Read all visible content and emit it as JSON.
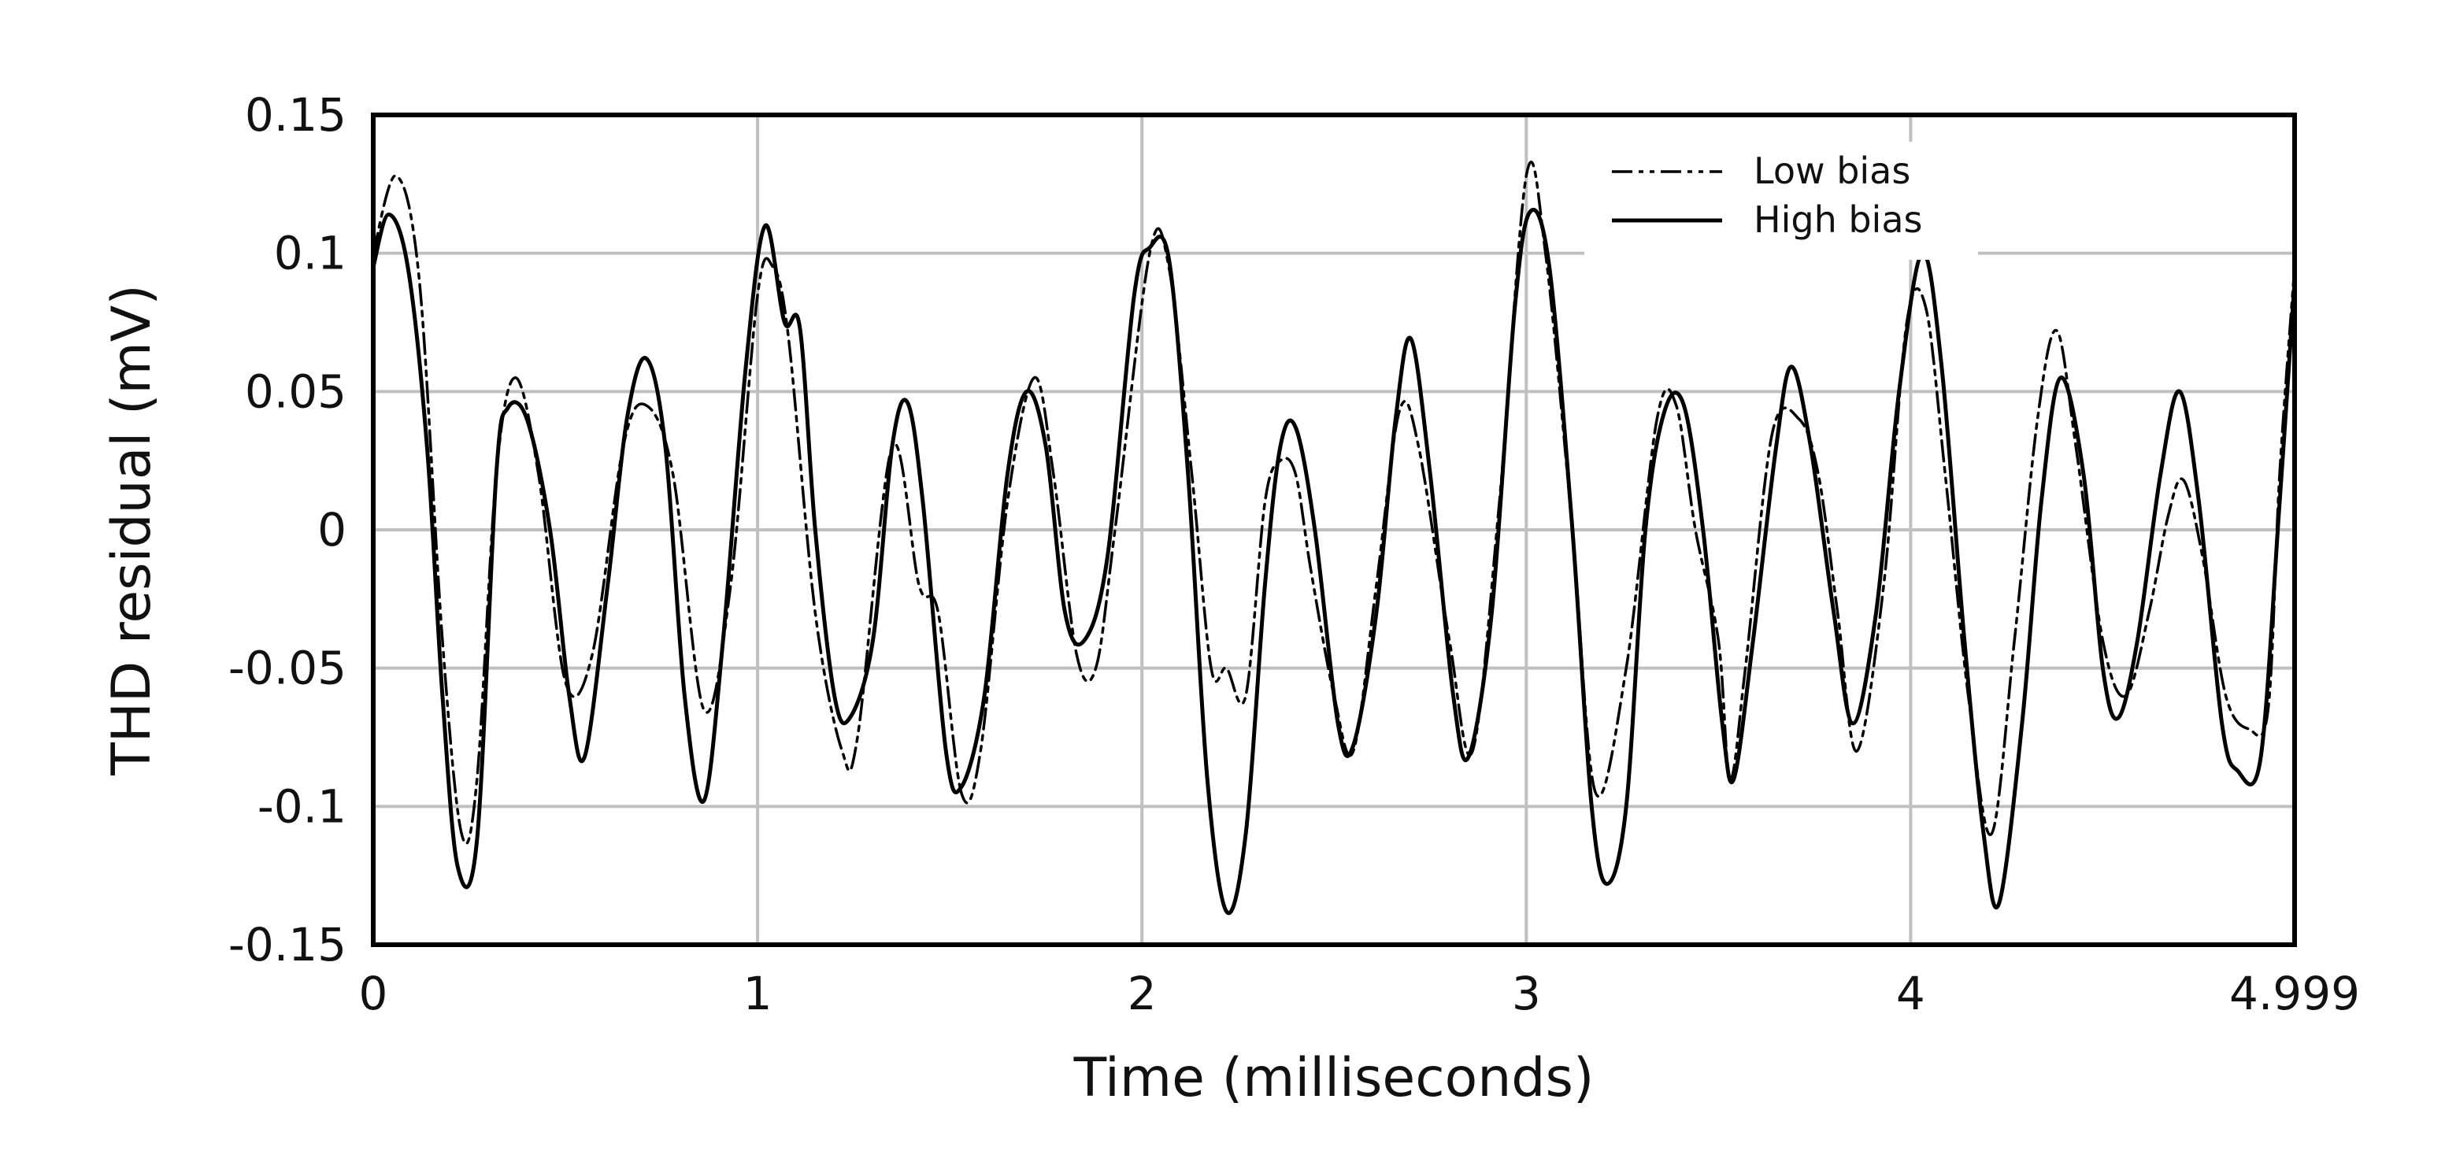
{
  "chart_data": {
    "type": "line",
    "xlabel": "Time (milliseconds)",
    "ylabel": "THD residual (mV)",
    "xlim": [
      0,
      4.999
    ],
    "ylim": [
      -0.15,
      0.15
    ],
    "x_ticks": [
      {
        "value": 0,
        "label": "0"
      },
      {
        "value": 1,
        "label": "1"
      },
      {
        "value": 2,
        "label": "2"
      },
      {
        "value": 3,
        "label": "3"
      },
      {
        "value": 4,
        "label": "4"
      },
      {
        "value": 4.999,
        "label": "4.999"
      }
    ],
    "y_ticks": [
      {
        "value": 0.15,
        "label": "0.15"
      },
      {
        "value": 0.1,
        "label": "0.1"
      },
      {
        "value": 0.05,
        "label": "0.05"
      },
      {
        "value": 0,
        "label": "0"
      },
      {
        "value": -0.05,
        "label": "-0.05"
      },
      {
        "value": -0.1,
        "label": "-0.1"
      },
      {
        "value": -0.15,
        "label": "-0.15"
      }
    ],
    "grid": true,
    "legend": {
      "position": "top-right"
    },
    "series": [
      {
        "name": "Low bias",
        "style": "dash-dot-dot",
        "color": "#000000",
        "points": [
          [
            0.0,
            0.1
          ],
          [
            0.06,
            0.128
          ],
          [
            0.12,
            0.09
          ],
          [
            0.18,
            -0.04
          ],
          [
            0.23,
            -0.11
          ],
          [
            0.27,
            -0.09
          ],
          [
            0.32,
            0.02
          ],
          [
            0.37,
            0.055
          ],
          [
            0.43,
            0.02
          ],
          [
            0.5,
            -0.055
          ],
          [
            0.57,
            -0.045
          ],
          [
            0.65,
            0.03
          ],
          [
            0.71,
            0.045
          ],
          [
            0.78,
            0.02
          ],
          [
            0.86,
            -0.065
          ],
          [
            0.93,
            -0.02
          ],
          [
            1.0,
            0.085
          ],
          [
            1.04,
            0.095
          ],
          [
            1.08,
            0.07
          ],
          [
            1.15,
            -0.03
          ],
          [
            1.22,
            -0.08
          ],
          [
            1.26,
            -0.075
          ],
          [
            1.35,
            0.03
          ],
          [
            1.42,
            -0.02
          ],
          [
            1.47,
            -0.03
          ],
          [
            1.53,
            -0.095
          ],
          [
            1.58,
            -0.08
          ],
          [
            1.65,
            0.01
          ],
          [
            1.72,
            0.055
          ],
          [
            1.77,
            0.02
          ],
          [
            1.83,
            -0.045
          ],
          [
            1.88,
            -0.05
          ],
          [
            1.93,
            0.0
          ],
          [
            2.02,
            0.1
          ],
          [
            2.07,
            0.095
          ],
          [
            2.13,
            0.02
          ],
          [
            2.18,
            -0.05
          ],
          [
            2.22,
            -0.05
          ],
          [
            2.27,
            -0.06
          ],
          [
            2.32,
            0.01
          ],
          [
            2.36,
            0.025
          ],
          [
            2.4,
            0.02
          ],
          [
            2.44,
            -0.015
          ],
          [
            2.5,
            -0.06
          ],
          [
            2.55,
            -0.08
          ],
          [
            2.61,
            -0.02
          ],
          [
            2.67,
            0.043
          ],
          [
            2.72,
            0.03
          ],
          [
            2.8,
            -0.04
          ],
          [
            2.86,
            -0.08
          ],
          [
            2.93,
            0.01
          ],
          [
            3.0,
            0.128
          ],
          [
            3.05,
            0.1
          ],
          [
            3.12,
            0.0
          ],
          [
            3.18,
            -0.095
          ],
          [
            3.26,
            -0.05
          ],
          [
            3.34,
            0.04
          ],
          [
            3.39,
            0.045
          ],
          [
            3.44,
            0.0
          ],
          [
            3.5,
            -0.04
          ],
          [
            3.53,
            -0.09
          ],
          [
            3.57,
            -0.05
          ],
          [
            3.64,
            0.035
          ],
          [
            3.71,
            0.04
          ],
          [
            3.76,
            0.02
          ],
          [
            3.81,
            -0.03
          ],
          [
            3.86,
            -0.08
          ],
          [
            3.93,
            -0.02
          ],
          [
            3.99,
            0.075
          ],
          [
            4.04,
            0.08
          ],
          [
            4.09,
            0.02
          ],
          [
            4.15,
            -0.06
          ],
          [
            4.21,
            -0.11
          ],
          [
            4.27,
            -0.04
          ],
          [
            4.33,
            0.04
          ],
          [
            4.38,
            0.072
          ],
          [
            4.43,
            0.03
          ],
          [
            4.5,
            -0.04
          ],
          [
            4.56,
            -0.06
          ],
          [
            4.62,
            -0.03
          ],
          [
            4.67,
            0.005
          ],
          [
            4.71,
            0.018
          ],
          [
            4.76,
            -0.01
          ],
          [
            4.82,
            -0.06
          ],
          [
            4.88,
            -0.072
          ],
          [
            4.93,
            -0.065
          ],
          [
            4.96,
            0.02
          ],
          [
            4.999,
            0.095
          ]
        ]
      },
      {
        "name": "High bias",
        "style": "solid",
        "color": "#000000",
        "points": [
          [
            0.0,
            0.095
          ],
          [
            0.04,
            0.114
          ],
          [
            0.09,
            0.095
          ],
          [
            0.14,
            0.03
          ],
          [
            0.18,
            -0.06
          ],
          [
            0.22,
            -0.122
          ],
          [
            0.27,
            -0.112
          ],
          [
            0.32,
            0.02
          ],
          [
            0.35,
            0.044
          ],
          [
            0.4,
            0.04
          ],
          [
            0.46,
            0.0
          ],
          [
            0.51,
            -0.06
          ],
          [
            0.55,
            -0.082
          ],
          [
            0.61,
            -0.02
          ],
          [
            0.66,
            0.04
          ],
          [
            0.71,
            0.062
          ],
          [
            0.76,
            0.03
          ],
          [
            0.81,
            -0.06
          ],
          [
            0.86,
            -0.098
          ],
          [
            0.91,
            -0.04
          ],
          [
            0.97,
            0.06
          ],
          [
            1.02,
            0.11
          ],
          [
            1.07,
            0.075
          ],
          [
            1.11,
            0.073
          ],
          [
            1.15,
            0.0
          ],
          [
            1.2,
            -0.06
          ],
          [
            1.24,
            -0.068
          ],
          [
            1.3,
            -0.04
          ],
          [
            1.35,
            0.03
          ],
          [
            1.39,
            0.046
          ],
          [
            1.43,
            0.01
          ],
          [
            1.49,
            -0.08
          ],
          [
            1.53,
            -0.093
          ],
          [
            1.59,
            -0.06
          ],
          [
            1.65,
            0.02
          ],
          [
            1.7,
            0.05
          ],
          [
            1.75,
            0.03
          ],
          [
            1.8,
            -0.03
          ],
          [
            1.85,
            -0.04
          ],
          [
            1.91,
            -0.01
          ],
          [
            1.98,
            0.085
          ],
          [
            2.02,
            0.102
          ],
          [
            2.07,
            0.098
          ],
          [
            2.12,
            0.02
          ],
          [
            2.17,
            -0.09
          ],
          [
            2.22,
            -0.138
          ],
          [
            2.27,
            -0.11
          ],
          [
            2.32,
            -0.02
          ],
          [
            2.36,
            0.03
          ],
          [
            2.4,
            0.037
          ],
          [
            2.45,
            0.0
          ],
          [
            2.51,
            -0.07
          ],
          [
            2.55,
            -0.078
          ],
          [
            2.61,
            -0.03
          ],
          [
            2.66,
            0.04
          ],
          [
            2.7,
            0.069
          ],
          [
            2.75,
            0.02
          ],
          [
            2.81,
            -0.06
          ],
          [
            2.85,
            -0.082
          ],
          [
            2.91,
            -0.03
          ],
          [
            2.97,
            0.08
          ],
          [
            3.01,
            0.115
          ],
          [
            3.06,
            0.095
          ],
          [
            3.12,
            0.0
          ],
          [
            3.17,
            -0.1
          ],
          [
            3.21,
            -0.128
          ],
          [
            3.26,
            -0.1
          ],
          [
            3.31,
            0.0
          ],
          [
            3.36,
            0.043
          ],
          [
            3.41,
            0.045
          ],
          [
            3.46,
            0.0
          ],
          [
            3.51,
            -0.07
          ],
          [
            3.54,
            -0.09
          ],
          [
            3.59,
            -0.04
          ],
          [
            3.65,
            0.03
          ],
          [
            3.69,
            0.059
          ],
          [
            3.74,
            0.03
          ],
          [
            3.8,
            -0.03
          ],
          [
            3.85,
            -0.07
          ],
          [
            3.91,
            -0.03
          ],
          [
            3.97,
            0.05
          ],
          [
            4.03,
            0.1
          ],
          [
            4.08,
            0.06
          ],
          [
            4.14,
            -0.04
          ],
          [
            4.19,
            -0.11
          ],
          [
            4.23,
            -0.135
          ],
          [
            4.29,
            -0.07
          ],
          [
            4.34,
            0.01
          ],
          [
            4.39,
            0.055
          ],
          [
            4.45,
            0.02
          ],
          [
            4.5,
            -0.05
          ],
          [
            4.54,
            -0.068
          ],
          [
            4.59,
            -0.04
          ],
          [
            4.65,
            0.02
          ],
          [
            4.7,
            0.05
          ],
          [
            4.75,
            0.01
          ],
          [
            4.81,
            -0.07
          ],
          [
            4.85,
            -0.087
          ],
          [
            4.91,
            -0.083
          ],
          [
            4.96,
            0.01
          ],
          [
            4.999,
            0.09
          ]
        ]
      }
    ]
  }
}
